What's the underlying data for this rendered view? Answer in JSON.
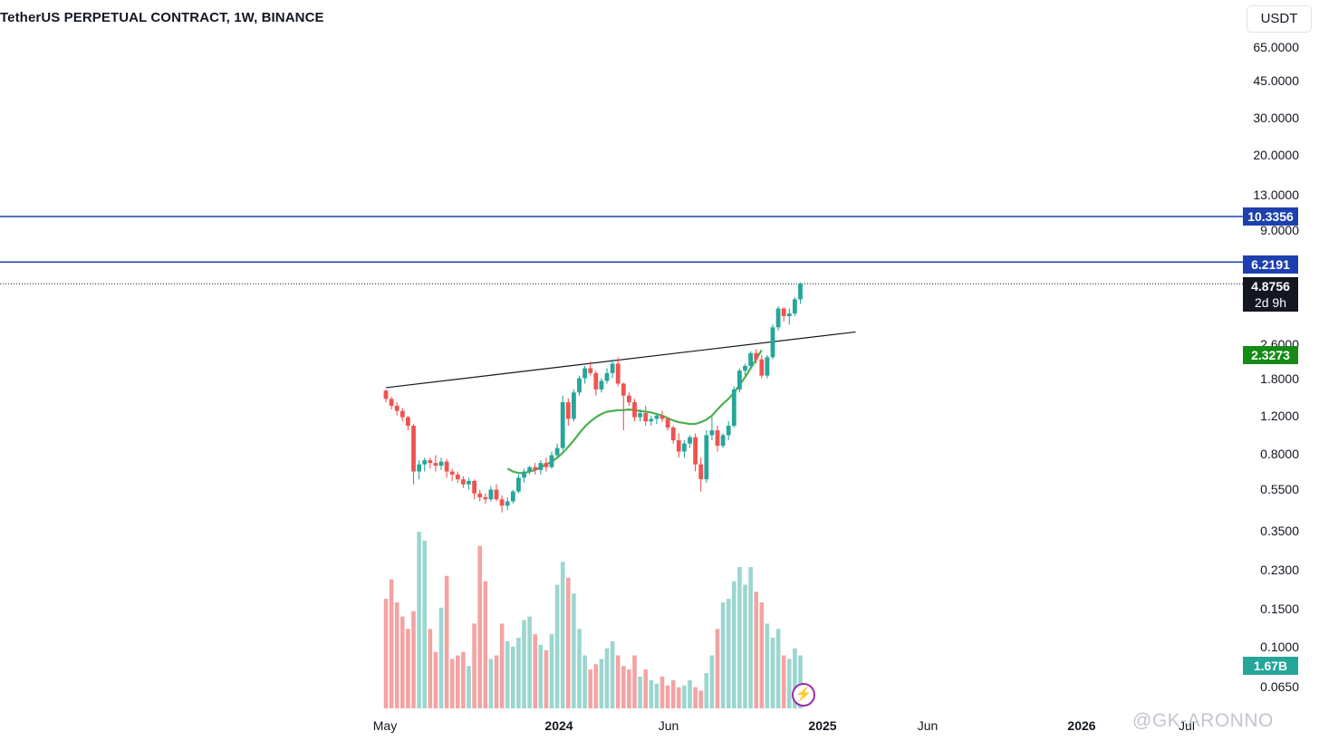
{
  "header": {
    "symbol_title": "TetherUS PERPETUAL CONTRACT, 1W, BINANCE",
    "currency": "USDT"
  },
  "price_axis": {
    "ticks": [
      "65.0000",
      "45.0000",
      "30.0000",
      "20.0000",
      "13.0000",
      "9.0000",
      "2.6000",
      "1.8000",
      "1.2000",
      "0.8000",
      "0.5500",
      "0.3500",
      "0.2300",
      "0.1500",
      "0.1000",
      "0.0650"
    ]
  },
  "time_axis": {
    "ticks": [
      "May",
      "2024",
      "Jun",
      "2025",
      "Jun",
      "2026",
      "Jul"
    ]
  },
  "price_lines": [
    {
      "label": "10.3356",
      "color": "#1e40af"
    },
    {
      "label": "6.2191",
      "color": "#1e40af"
    }
  ],
  "last_price": {
    "value": "4.8756",
    "countdown": "2d 9h"
  },
  "ma_badge": {
    "label": "2.3273",
    "color": "#158b15"
  },
  "volume_badge": {
    "label": "1.67B",
    "color": "#26a69a"
  },
  "watermark": "@GK-ARONNO",
  "colors": {
    "up": "#26a69a",
    "down": "#ef5350",
    "vol_up": "#9bd6cf",
    "vol_down": "#f4a3a3",
    "ma": "#4caf50"
  },
  "chart_data": {
    "type": "candlestick",
    "interval": "1W",
    "price_scale": "log",
    "x_start": "2023-05",
    "x_end": "2024-12",
    "volume_axis_shown": false,
    "candles": [
      [
        1.48,
        1.5,
        1.3,
        1.35
      ],
      [
        1.35,
        1.38,
        1.2,
        1.25
      ],
      [
        1.25,
        1.3,
        1.12,
        1.18
      ],
      [
        1.18,
        1.22,
        1.05,
        1.1
      ],
      [
        1.1,
        1.12,
        0.95,
        1.0
      ],
      [
        1.0,
        1.02,
        0.52,
        0.6
      ],
      [
        0.6,
        0.68,
        0.55,
        0.65
      ],
      [
        0.65,
        0.7,
        0.6,
        0.68
      ],
      [
        0.68,
        0.7,
        0.62,
        0.66
      ],
      [
        0.66,
        0.72,
        0.6,
        0.64
      ],
      [
        0.64,
        0.7,
        0.61,
        0.67
      ],
      [
        0.67,
        0.69,
        0.56,
        0.6
      ],
      [
        0.6,
        0.62,
        0.54,
        0.58
      ],
      [
        0.58,
        0.6,
        0.53,
        0.55
      ],
      [
        0.55,
        0.57,
        0.5,
        0.52
      ],
      [
        0.52,
        0.56,
        0.49,
        0.54
      ],
      [
        0.54,
        0.55,
        0.44,
        0.47
      ],
      [
        0.47,
        0.49,
        0.43,
        0.45
      ],
      [
        0.45,
        0.47,
        0.42,
        0.44
      ],
      [
        0.44,
        0.51,
        0.43,
        0.49
      ],
      [
        0.49,
        0.52,
        0.43,
        0.44
      ],
      [
        0.44,
        0.46,
        0.38,
        0.41
      ],
      [
        0.41,
        0.45,
        0.39,
        0.43
      ],
      [
        0.43,
        0.49,
        0.42,
        0.48
      ],
      [
        0.48,
        0.58,
        0.47,
        0.56
      ],
      [
        0.56,
        0.62,
        0.53,
        0.6
      ],
      [
        0.6,
        0.64,
        0.58,
        0.63
      ],
      [
        0.63,
        0.66,
        0.58,
        0.61
      ],
      [
        0.61,
        0.68,
        0.58,
        0.66
      ],
      [
        0.66,
        0.7,
        0.6,
        0.63
      ],
      [
        0.63,
        0.75,
        0.62,
        0.72
      ],
      [
        0.72,
        0.82,
        0.7,
        0.78
      ],
      [
        0.78,
        1.4,
        0.76,
        1.3
      ],
      [
        1.3,
        1.36,
        1.0,
        1.08
      ],
      [
        1.08,
        1.5,
        1.05,
        1.45
      ],
      [
        1.45,
        1.75,
        1.4,
        1.7
      ],
      [
        1.7,
        1.95,
        1.6,
        1.9
      ],
      [
        1.9,
        2.05,
        1.75,
        1.8
      ],
      [
        1.8,
        1.85,
        1.4,
        1.5
      ],
      [
        1.5,
        1.7,
        1.45,
        1.65
      ],
      [
        1.65,
        1.9,
        1.6,
        1.8
      ],
      [
        1.8,
        2.1,
        1.7,
        2.0
      ],
      [
        2.0,
        2.15,
        1.55,
        1.6
      ],
      [
        1.6,
        1.62,
        0.95,
        1.4
      ],
      [
        1.4,
        1.45,
        1.25,
        1.3
      ],
      [
        1.3,
        1.35,
        1.05,
        1.1
      ],
      [
        1.1,
        1.2,
        1.05,
        1.15
      ],
      [
        1.15,
        1.25,
        1.0,
        1.05
      ],
      [
        1.05,
        1.12,
        1.0,
        1.08
      ],
      [
        1.08,
        1.15,
        1.02,
        1.12
      ],
      [
        1.12,
        1.18,
        1.04,
        1.08
      ],
      [
        1.08,
        1.1,
        0.95,
        0.98
      ],
      [
        0.98,
        1.0,
        0.82,
        0.85
      ],
      [
        0.85,
        0.92,
        0.7,
        0.75
      ],
      [
        0.75,
        0.85,
        0.7,
        0.82
      ],
      [
        0.82,
        0.9,
        0.78,
        0.88
      ],
      [
        0.88,
        0.92,
        0.6,
        0.65
      ],
      [
        0.65,
        0.7,
        0.48,
        0.55
      ],
      [
        0.55,
        0.95,
        0.53,
        0.9
      ],
      [
        0.9,
        1.1,
        0.85,
        0.95
      ],
      [
        0.95,
        1.0,
        0.75,
        0.8
      ],
      [
        0.8,
        0.92,
        0.78,
        0.9
      ],
      [
        0.9,
        1.05,
        0.85,
        1.0
      ],
      [
        1.0,
        1.55,
        0.98,
        1.5
      ],
      [
        1.5,
        1.9,
        1.45,
        1.85
      ],
      [
        1.85,
        2.0,
        1.75,
        1.95
      ],
      [
        1.95,
        2.3,
        1.9,
        2.25
      ],
      [
        2.25,
        2.35,
        2.0,
        2.1
      ],
      [
        2.1,
        2.2,
        1.7,
        1.75
      ],
      [
        1.75,
        2.2,
        1.7,
        2.15
      ],
      [
        2.15,
        3.1,
        2.1,
        3.0
      ],
      [
        3.0,
        3.8,
        2.9,
        3.7
      ],
      [
        3.7,
        3.75,
        3.2,
        3.4
      ],
      [
        3.4,
        3.7,
        3.1,
        3.5
      ],
      [
        3.5,
        4.2,
        3.4,
        4.1
      ],
      [
        4.1,
        4.95,
        3.9,
        4.8756
      ]
    ],
    "ma_line_start_index": 32,
    "ma_line": [
      0.62,
      0.6,
      0.59,
      0.59,
      0.6,
      0.61,
      0.63,
      0.65,
      0.67,
      0.7,
      0.74,
      0.79,
      0.85,
      0.92,
      0.99,
      1.05,
      1.1,
      1.14,
      1.17,
      1.18,
      1.19,
      1.19,
      1.2,
      1.19,
      1.18,
      1.17,
      1.16,
      1.14,
      1.12,
      1.09,
      1.06,
      1.04,
      1.03,
      1.02,
      1.02,
      1.04,
      1.07,
      1.12,
      1.2,
      1.28,
      1.35,
      1.45,
      1.58,
      1.72,
      1.9,
      2.1,
      2.3273
    ],
    "ma_line_offset": 22,
    "volume": [
      0.62,
      0.73,
      0.6,
      0.52,
      0.45,
      0.55,
      1.0,
      0.95,
      0.45,
      0.32,
      0.57,
      0.75,
      0.28,
      0.3,
      0.32,
      0.24,
      0.48,
      0.92,
      0.72,
      0.28,
      0.3,
      0.48,
      0.38,
      0.35,
      0.4,
      0.5,
      0.52,
      0.42,
      0.36,
      0.33,
      0.42,
      0.7,
      0.83,
      0.74,
      0.65,
      0.45,
      0.3,
      0.22,
      0.25,
      0.28,
      0.34,
      0.38,
      0.3,
      0.24,
      0.22,
      0.3,
      0.18,
      0.22,
      0.16,
      0.14,
      0.18,
      0.13,
      0.16,
      0.12,
      0.13,
      0.16,
      0.12,
      0.1,
      0.2,
      0.3,
      0.45,
      0.6,
      0.62,
      0.72,
      0.8,
      0.7,
      0.8,
      0.66,
      0.6,
      0.48,
      0.4,
      0.45,
      0.3,
      0.28,
      0.34,
      0.3
    ],
    "trendline": {
      "from_index": 0,
      "from_price": 1.53,
      "to_index": 85,
      "to_price": 2.85
    },
    "horizontal_levels": [
      10.3356,
      6.2191
    ],
    "last_price": 4.8756
  }
}
